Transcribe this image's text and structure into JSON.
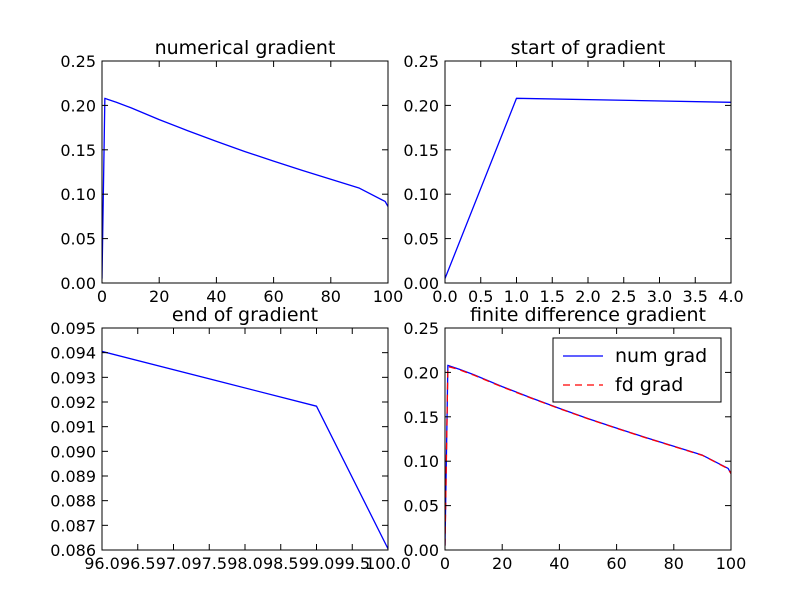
{
  "figure": {
    "background": "#ffffff"
  },
  "chart_data": [
    {
      "type": "line",
      "title": "numerical gradient",
      "xlim": [
        0,
        100
      ],
      "ylim": [
        0,
        0.25
      ],
      "xticks": [
        0,
        20,
        40,
        60,
        80,
        100
      ],
      "xtick_labels": [
        "0",
        "20",
        "40",
        "60",
        "80",
        "100"
      ],
      "yticks": [
        0,
        0.05,
        0.1,
        0.15,
        0.2,
        0.25
      ],
      "ytick_labels": [
        "0.00",
        "0.05",
        "0.10",
        "0.15",
        "0.20",
        "0.25"
      ],
      "series": [
        {
          "color": "#0000ff",
          "dash": "solid",
          "x": [
            0,
            1,
            2,
            5,
            10,
            20,
            30,
            40,
            50,
            60,
            70,
            80,
            90,
            99,
            100
          ],
          "y": [
            0.005,
            0.208,
            0.2068,
            0.2035,
            0.1975,
            0.184,
            0.1715,
            0.1595,
            0.148,
            0.1372,
            0.1268,
            0.1168,
            0.1068,
            0.0918,
            0.0861
          ]
        }
      ]
    },
    {
      "type": "line",
      "title": "start of gradient",
      "xlim": [
        0,
        4
      ],
      "ylim": [
        0,
        0.25
      ],
      "xticks": [
        0,
        0.5,
        1,
        1.5,
        2,
        2.5,
        3,
        3.5,
        4
      ],
      "xtick_labels": [
        "0.0",
        "0.5",
        "1.0",
        "1.5",
        "2.0",
        "2.5",
        "3.0",
        "3.5",
        "4.0"
      ],
      "yticks": [
        0,
        0.05,
        0.1,
        0.15,
        0.2,
        0.25
      ],
      "ytick_labels": [
        "0.00",
        "0.05",
        "0.10",
        "0.15",
        "0.20",
        "0.25"
      ],
      "series": [
        {
          "color": "#0000ff",
          "dash": "solid",
          "x": [
            0,
            1,
            4
          ],
          "y": [
            0.005,
            0.208,
            0.2035
          ]
        }
      ]
    },
    {
      "type": "line",
      "title": "end of gradient",
      "xlim": [
        96,
        100
      ],
      "ylim": [
        0.086,
        0.095
      ],
      "xticks": [
        96,
        96.5,
        97,
        97.5,
        98,
        98.5,
        99,
        99.5,
        100
      ],
      "xtick_labels": [
        "96.0",
        "96.5",
        "97.0",
        "97.5",
        "98.0",
        "98.5",
        "99.0",
        "99.5",
        "100.0"
      ],
      "yticks": [
        0.086,
        0.087,
        0.088,
        0.089,
        0.09,
        0.091,
        0.092,
        0.093,
        0.094,
        0.095
      ],
      "ytick_labels": [
        "0.086",
        "0.087",
        "0.088",
        "0.089",
        "0.090",
        "0.091",
        "0.092",
        "0.093",
        "0.094",
        "0.095"
      ],
      "series": [
        {
          "color": "#0000ff",
          "dash": "solid",
          "x": [
            96,
            99,
            100
          ],
          "y": [
            0.09405,
            0.09183,
            0.08605
          ]
        }
      ]
    },
    {
      "type": "line",
      "title": "finite difference gradient",
      "xlim": [
        0,
        100
      ],
      "ylim": [
        0,
        0.25
      ],
      "xticks": [
        0,
        20,
        40,
        60,
        80,
        100
      ],
      "xtick_labels": [
        "0",
        "20",
        "40",
        "60",
        "80",
        "100"
      ],
      "yticks": [
        0,
        0.05,
        0.1,
        0.15,
        0.2,
        0.25
      ],
      "ytick_labels": [
        "0.00",
        "0.05",
        "0.10",
        "0.15",
        "0.20",
        "0.25"
      ],
      "legend": {
        "position": "upper right"
      },
      "series": [
        {
          "name": "num grad",
          "color": "#0000ff",
          "dash": "solid",
          "x": [
            0,
            1,
            2,
            5,
            10,
            20,
            30,
            40,
            50,
            60,
            70,
            80,
            90,
            99,
            100
          ],
          "y": [
            0.005,
            0.208,
            0.2068,
            0.2035,
            0.1975,
            0.184,
            0.1715,
            0.1595,
            0.148,
            0.1372,
            0.1268,
            0.1168,
            0.1068,
            0.0918,
            0.0861
          ]
        },
        {
          "name": "fd grad",
          "color": "#ff0000",
          "dash": "dashed",
          "x": [
            0,
            1,
            2,
            5,
            10,
            20,
            30,
            40,
            50,
            60,
            70,
            80,
            90,
            99,
            100
          ],
          "y": [
            0.005,
            0.2065,
            0.2058,
            0.203,
            0.197,
            0.1836,
            0.1712,
            0.1592,
            0.1478,
            0.137,
            0.1266,
            0.1166,
            0.1066,
            0.0915,
            0.0861
          ]
        }
      ]
    }
  ]
}
